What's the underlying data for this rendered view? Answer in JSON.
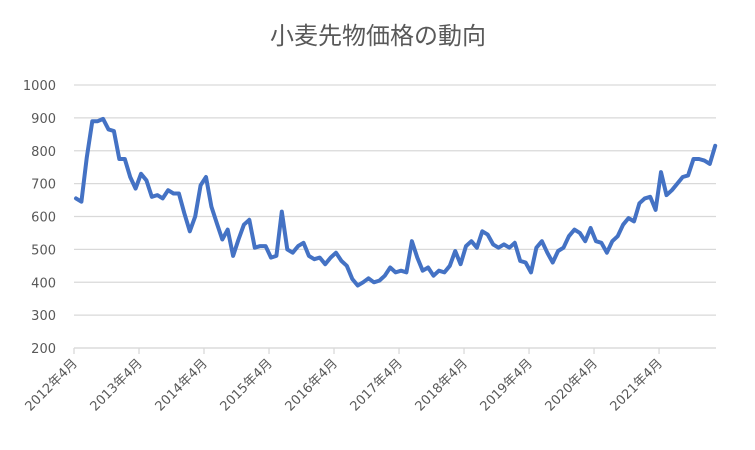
{
  "chart_data": {
    "type": "line",
    "title": "小麦先物価格の動向",
    "xlabel": "",
    "ylabel": "",
    "ylim": [
      200,
      1000
    ],
    "yticks": [
      "200",
      "300",
      "400",
      "500",
      "600",
      "700",
      "800",
      "900",
      "1000"
    ],
    "xticks": [
      "2012年4月",
      "2013年4月",
      "2014年4月",
      "2015年4月",
      "2016年4月",
      "2017年4月",
      "2018年4月",
      "2019年4月",
      "2020年4月",
      "2021年4月"
    ],
    "x_start": "2012年4月",
    "x_end": "2022年2月",
    "grid": "horizontal",
    "legend": "none",
    "color": "#4472C4",
    "values": [
      655,
      645,
      780,
      890,
      890,
      897,
      865,
      860,
      775,
      775,
      720,
      685,
      730,
      710,
      660,
      665,
      655,
      680,
      670,
      670,
      610,
      555,
      600,
      695,
      720,
      630,
      580,
      530,
      560,
      480,
      530,
      575,
      590,
      505,
      510,
      510,
      475,
      480,
      615,
      500,
      490,
      510,
      520,
      480,
      470,
      475,
      455,
      475,
      490,
      465,
      450,
      410,
      390,
      400,
      412,
      400,
      405,
      420,
      445,
      430,
      435,
      430,
      525,
      475,
      435,
      445,
      420,
      435,
      430,
      450,
      495,
      455,
      510,
      525,
      505,
      555,
      545,
      515,
      505,
      515,
      505,
      520,
      465,
      460,
      430,
      505,
      525,
      490,
      460,
      495,
      505,
      540,
      560,
      550,
      525,
      565,
      525,
      520,
      490,
      525,
      540,
      575,
      595,
      585,
      640,
      655,
      660,
      620,
      735,
      665,
      680,
      700,
      720,
      725,
      775,
      775,
      770,
      760,
      815
    ]
  }
}
